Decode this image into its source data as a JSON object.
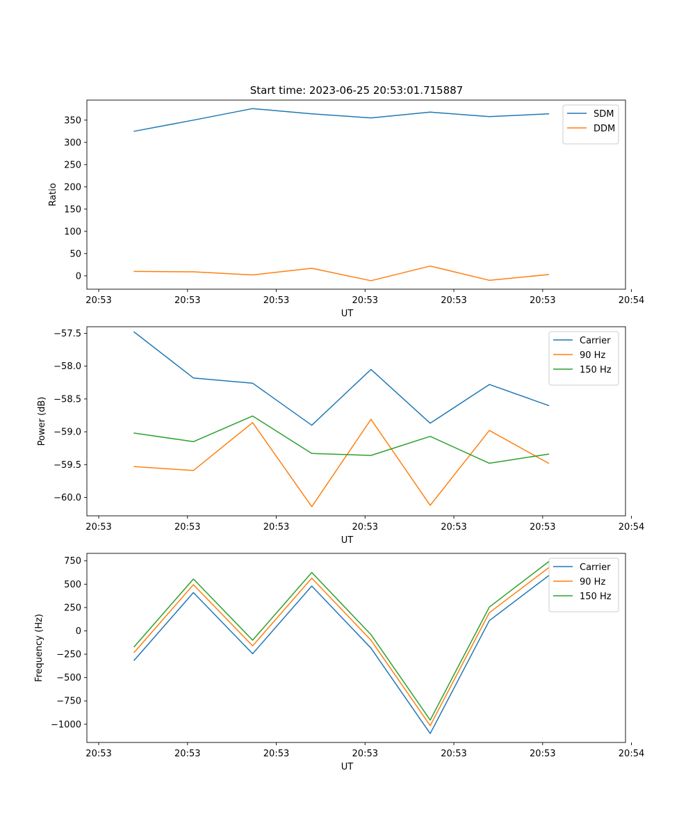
{
  "figure_title": "Start time: 2023-06-25 20:53:01.715887",
  "colors": {
    "blue": "#1f77b4",
    "orange": "#ff7f0e",
    "green": "#2ca02c"
  },
  "chart_data": [
    {
      "type": "line",
      "title": "Start time: 2023-06-25 20:53:01.715887",
      "xlabel": "UT",
      "ylabel": "Ratio",
      "x": [
        1,
        2,
        3,
        4,
        5,
        6,
        7,
        8
      ],
      "xlim": [
        0.2,
        9.3
      ],
      "x_ticks": [
        0.4,
        1.9,
        3.4,
        4.9,
        6.4,
        7.9,
        9.4
      ],
      "x_tick_labels": [
        "20:53",
        "20:53",
        "20:53",
        "20:53",
        "20:53",
        "20:53",
        "20:54"
      ],
      "ylim": [
        -30,
        395
      ],
      "y_ticks": [
        0,
        50,
        100,
        150,
        200,
        250,
        300,
        350
      ],
      "y_tick_labels": [
        "0",
        "50",
        "100",
        "150",
        "200",
        "250",
        "300",
        "350"
      ],
      "legend_position": "top-right",
      "series": [
        {
          "name": "SDM",
          "color": "#1f77b4",
          "values": [
            325,
            350,
            376,
            364,
            355,
            368,
            358,
            364
          ]
        },
        {
          "name": "DDM",
          "color": "#ff7f0e",
          "values": [
            10,
            9,
            2,
            17,
            -11,
            22,
            -10,
            3
          ]
        }
      ]
    },
    {
      "type": "line",
      "title": "",
      "xlabel": "UT",
      "ylabel": "Power (dB)",
      "x": [
        1,
        2,
        3,
        4,
        5,
        6,
        7,
        8
      ],
      "xlim": [
        0.2,
        9.3
      ],
      "x_ticks": [
        0.4,
        1.9,
        3.4,
        4.9,
        6.4,
        7.9,
        9.4
      ],
      "x_tick_labels": [
        "20:53",
        "20:53",
        "20:53",
        "20:53",
        "20:53",
        "20:53",
        "20:54"
      ],
      "ylim": [
        -60.28,
        -57.4
      ],
      "y_ticks": [
        -60.0,
        -59.5,
        -59.0,
        -58.5,
        -58.0,
        -57.5
      ],
      "y_tick_labels": [
        "−60.0",
        "−59.5",
        "−59.0",
        "−58.5",
        "−58.0",
        "−57.5"
      ],
      "legend_position": "top-right",
      "series": [
        {
          "name": "Carrier",
          "color": "#1f77b4",
          "values": [
            -57.48,
            -58.18,
            -58.26,
            -58.9,
            -58.05,
            -58.87,
            -58.28,
            -58.6
          ]
        },
        {
          "name": "90 Hz",
          "color": "#ff7f0e",
          "values": [
            -59.53,
            -59.59,
            -58.86,
            -60.14,
            -58.81,
            -60.12,
            -58.98,
            -59.48
          ]
        },
        {
          "name": "150 Hz",
          "color": "#2ca02c",
          "values": [
            -59.02,
            -59.15,
            -58.76,
            -59.33,
            -59.36,
            -59.07,
            -59.48,
            -59.34
          ]
        }
      ]
    },
    {
      "type": "line",
      "title": "",
      "xlabel": "UT",
      "ylabel": "Frequency (Hz)",
      "x": [
        1,
        2,
        3,
        4,
        5,
        6,
        7,
        8
      ],
      "xlim": [
        0.2,
        9.3
      ],
      "x_ticks": [
        0.4,
        1.9,
        3.4,
        4.9,
        6.4,
        7.9,
        9.4
      ],
      "x_tick_labels": [
        "20:53",
        "20:53",
        "20:53",
        "20:53",
        "20:53",
        "20:53",
        "20:54"
      ],
      "ylim": [
        -1195,
        830
      ],
      "y_ticks": [
        -1000,
        -750,
        -500,
        -250,
        0,
        250,
        500,
        750
      ],
      "y_tick_labels": [
        "−1000",
        "−750",
        "−500",
        "−250",
        "0",
        "250",
        "500",
        "750"
      ],
      "legend_position": "top-right",
      "series": [
        {
          "name": "Carrier",
          "color": "#1f77b4",
          "values": [
            -315,
            410,
            -245,
            480,
            -185,
            -1100,
            110,
            590
          ]
        },
        {
          "name": "90 Hz",
          "color": "#ff7f0e",
          "values": [
            -230,
            495,
            -160,
            565,
            -100,
            -1015,
            195,
            675
          ]
        },
        {
          "name": "150 Hz",
          "color": "#2ca02c",
          "values": [
            -170,
            555,
            -100,
            625,
            -40,
            -955,
            255,
            740
          ]
        }
      ]
    }
  ]
}
